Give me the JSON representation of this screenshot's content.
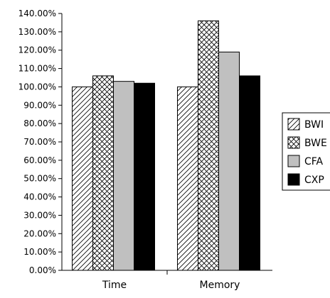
{
  "chart_data": {
    "type": "bar",
    "categories": [
      "Time",
      "Memory"
    ],
    "series": [
      {
        "name": "BWI",
        "values": [
          100.0,
          100.0
        ],
        "pattern": "diagonal-hatch",
        "color": "#ffffff"
      },
      {
        "name": "BWE",
        "values": [
          106.0,
          136.0
        ],
        "pattern": "crosshatch",
        "color": "#ffffff"
      },
      {
        "name": "CFA",
        "values": [
          103.0,
          119.0
        ],
        "pattern": "solid",
        "color": "#c0c0c0"
      },
      {
        "name": "CXP",
        "values": [
          102.0,
          106.0
        ],
        "pattern": "solid",
        "color": "#000000"
      }
    ],
    "ylim": [
      0,
      140
    ],
    "y_ticks": [
      "0.00%",
      "10.00%",
      "20.00%",
      "30.00%",
      "40.00%",
      "50.00%",
      "60.00%",
      "70.00%",
      "80.00%",
      "90.00%",
      "100.00%",
      "110.00%",
      "120.00%",
      "130.00%",
      "140.00%"
    ],
    "title": "",
    "xlabel": "",
    "ylabel": "",
    "grid": false,
    "legend": "right"
  }
}
